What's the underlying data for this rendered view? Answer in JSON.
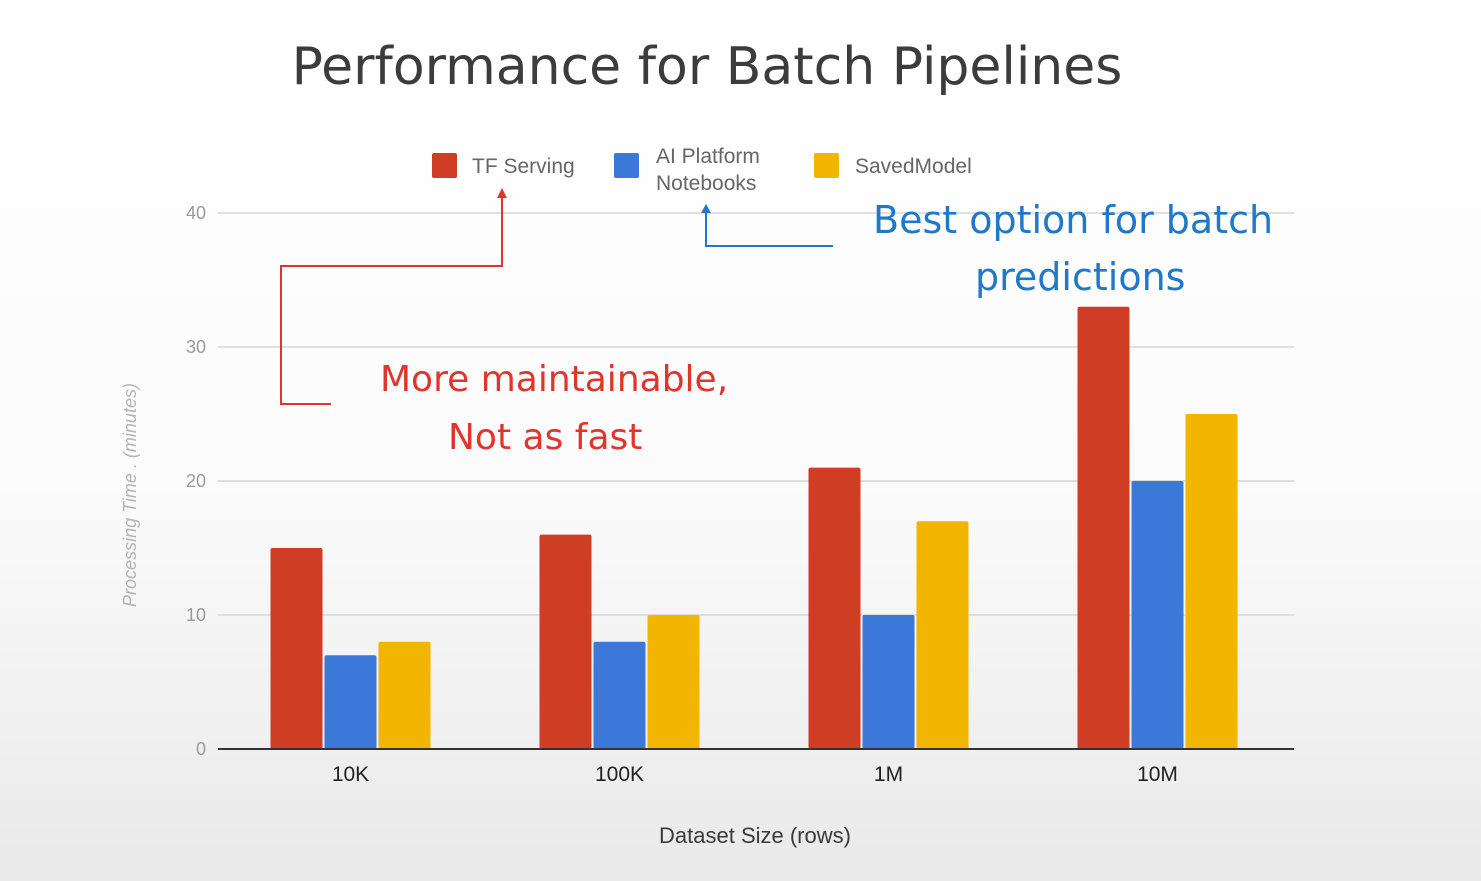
{
  "colors": {
    "tf_serving": "#cf3d24",
    "ai_platform": "#3b78d8",
    "savedmodel": "#f2b500",
    "annot_red": "#e0342c",
    "annot_blue": "#1f78c8"
  },
  "chart_data": {
    "type": "bar",
    "title": "Performance for Batch Pipelines",
    "xlabel": "Dataset Size (rows)",
    "ylabel": "Processing Time . (minutes)",
    "categories": [
      "10K",
      "100K",
      "1M",
      "10M"
    ],
    "ylim": [
      0,
      40
    ],
    "yticks": [
      "0",
      "10",
      "20",
      "30",
      "40"
    ],
    "grid": true,
    "legend_position": "top",
    "series": [
      {
        "name": "TF Serving",
        "color": "#cf3d24",
        "values": [
          15,
          16,
          21,
          33
        ]
      },
      {
        "name": "AI Platform Notebooks",
        "color": "#3b78d8",
        "values": [
          7,
          8,
          10,
          20
        ]
      },
      {
        "name": "SavedModel",
        "color": "#f2b500",
        "values": [
          8,
          10,
          17,
          25
        ]
      }
    ],
    "legend": {
      "tf_serving": "TF Serving",
      "ai_platform_line1": "AI Platform",
      "ai_platform_line2": "Notebooks",
      "savedmodel": "SavedModel"
    },
    "annotations": {
      "red_line1": "More maintainable,",
      "red_line2": "Not as fast",
      "blue_line1": "Best option for batch",
      "blue_line2": "predictions"
    }
  }
}
